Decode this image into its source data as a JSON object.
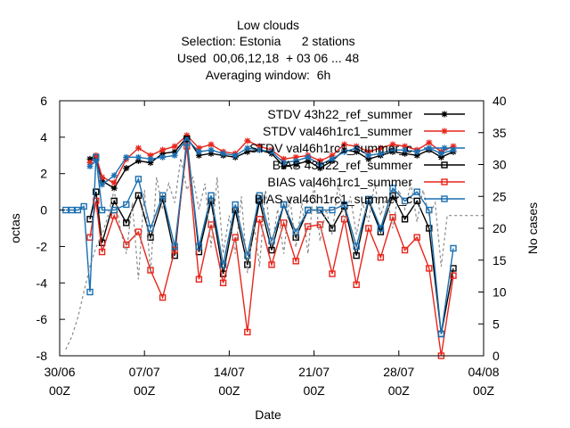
{
  "chart_data": {
    "type": "line",
    "title_lines": [
      "Low clouds",
      "Selection: Estonia      2 stations",
      "Used  00,06,12,18  + 03 06 ... 48",
      "Averaging window:  6h"
    ],
    "xlabel": "Date",
    "ylabel": "octas",
    "y2label": "No cases",
    "xlim": [
      0,
      35
    ],
    "ylim": [
      -8,
      6
    ],
    "y2lim": [
      0,
      40
    ],
    "xticks": [
      {
        "pos": 0,
        "line1": "30/06",
        "line2": "00Z"
      },
      {
        "pos": 7,
        "line1": "07/07",
        "line2": "00Z"
      },
      {
        "pos": 14,
        "line1": "14/07",
        "line2": "00Z"
      },
      {
        "pos": 21,
        "line1": "21/07",
        "line2": "00Z"
      },
      {
        "pos": 28,
        "line1": "28/07",
        "line2": "00Z"
      },
      {
        "pos": 35,
        "line1": "04/08",
        "line2": "00Z"
      }
    ],
    "yticks": [
      -8,
      -6,
      -4,
      -2,
      0,
      2,
      4,
      6
    ],
    "y2ticks": [
      0,
      5,
      10,
      15,
      20,
      25,
      30,
      35,
      40
    ],
    "grid": false,
    "legend_position": "top-right",
    "series": [
      {
        "name": "STDV 43h22_ref_summer",
        "color": "#000000",
        "marker": "star",
        "axis": "y",
        "x": [
          2.5,
          3.0,
          3.5,
          4.5,
          5.5,
          6.5,
          7.5,
          8.5,
          9.5,
          10.5,
          11.5,
          12.5,
          13.5,
          14.5,
          15.5,
          16.5,
          17.5,
          18.5,
          19.5,
          20.5,
          21.5,
          22.5,
          23.5,
          24.5,
          25.5,
          26.5,
          27.5,
          28.5,
          29.5,
          30.5,
          31.5,
          32.5
        ],
        "y": [
          2.8,
          2.9,
          1.6,
          1.2,
          2.3,
          2.7,
          2.6,
          3.1,
          3.2,
          4.0,
          3.0,
          3.1,
          3.0,
          2.9,
          3.2,
          3.3,
          3.1,
          2.4,
          2.5,
          2.7,
          2.3,
          2.7,
          3.3,
          3.2,
          2.8,
          3.0,
          3.2,
          3.1,
          3.0,
          3.3,
          2.9,
          3.2
        ]
      },
      {
        "name": "STDV val46h1rc1_summer",
        "color": "#e8251b",
        "marker": "star",
        "axis": "y",
        "x": [
          2.5,
          3.0,
          3.5,
          4.5,
          5.5,
          6.5,
          7.5,
          8.5,
          9.5,
          10.5,
          11.5,
          12.5,
          13.5,
          14.5,
          15.5,
          16.5,
          17.5,
          18.5,
          19.5,
          20.5,
          21.5,
          22.5,
          23.5,
          24.5,
          25.5,
          26.5,
          27.5,
          28.5,
          29.5,
          30.5,
          31.5,
          32.5
        ],
        "y": [
          2.6,
          3.0,
          1.8,
          1.5,
          2.8,
          3.4,
          3.0,
          3.3,
          3.5,
          4.1,
          3.4,
          3.6,
          3.2,
          3.1,
          3.8,
          3.5,
          3.3,
          2.8,
          2.9,
          3.0,
          2.7,
          3.0,
          3.6,
          3.5,
          3.2,
          3.4,
          3.6,
          3.5,
          3.3,
          3.7,
          3.2,
          3.5
        ]
      },
      {
        "name": "STDV val46h1rc1_summer_c",
        "color": "#1a6fb0",
        "marker": "star",
        "axis": "y",
        "x": [
          2.5,
          3.0,
          3.5,
          4.5,
          5.5,
          6.5,
          7.5,
          8.5,
          9.5,
          10.5,
          11.5,
          12.5,
          13.5,
          14.5,
          15.5,
          16.5,
          17.5,
          18.5,
          19.5,
          20.5,
          21.5,
          22.5,
          23.5,
          24.5,
          25.5,
          26.5,
          27.5,
          28.5,
          29.5,
          30.5,
          31.5,
          32.5
        ],
        "y": [
          2.4,
          2.7,
          1.4,
          1.9,
          2.9,
          2.9,
          2.8,
          2.9,
          3.0,
          3.9,
          3.2,
          3.3,
          3.1,
          3.0,
          3.4,
          3.3,
          3.2,
          2.6,
          2.7,
          2.9,
          2.5,
          2.8,
          3.2,
          3.4,
          3.0,
          3.1,
          3.3,
          3.3,
          3.2,
          3.4,
          3.1,
          3.3
        ]
      },
      {
        "name": "BIAS 43h22_ref_summer",
        "color": "#000000",
        "marker": "square",
        "axis": "y",
        "x": [
          2.5,
          3.0,
          3.5,
          4.5,
          5.5,
          6.5,
          7.5,
          8.5,
          9.5,
          10.5,
          11.5,
          12.5,
          13.5,
          14.5,
          15.5,
          16.5,
          17.5,
          18.5,
          19.5,
          20.5,
          21.5,
          22.5,
          23.5,
          24.5,
          25.5,
          26.5,
          27.5,
          28.5,
          29.5,
          30.5,
          31.5,
          32.5
        ],
        "y": [
          -0.5,
          1.0,
          -1.8,
          0.5,
          -0.7,
          0.8,
          -1.5,
          0.6,
          -2.5,
          3.9,
          -2.3,
          0.5,
          -3.5,
          0.0,
          -3.0,
          0.5,
          -2.2,
          0.3,
          -1.5,
          0.0,
          0.0,
          -1.0,
          0.2,
          -2.5,
          0.5,
          -1.2,
          0.8,
          -0.5,
          0.5,
          -1.0,
          -6.8,
          -3.2
        ]
      },
      {
        "name": "BIAS val46h1rc1_summer",
        "color": "#e8251b",
        "marker": "square",
        "axis": "y",
        "x": [
          2.5,
          3.0,
          3.5,
          4.5,
          5.5,
          6.5,
          7.5,
          8.5,
          9.5,
          10.5,
          11.5,
          12.5,
          13.5,
          14.5,
          15.5,
          16.5,
          17.5,
          18.5,
          19.5,
          20.5,
          21.5,
          22.5,
          23.5,
          24.5,
          25.5,
          26.5,
          27.5,
          28.5,
          29.5,
          30.5,
          31.5,
          32.5
        ],
        "y": [
          -1.5,
          0.5,
          -2.3,
          -0.3,
          -1.9,
          -1.2,
          -3.3,
          -4.8,
          -2.2,
          3.5,
          -3.8,
          -0.8,
          -4.0,
          -1.5,
          -6.7,
          -0.5,
          -3.0,
          -0.7,
          -2.8,
          -0.9,
          -0.8,
          -3.5,
          -0.5,
          -4.1,
          -1.0,
          -2.6,
          -0.4,
          -2.2,
          -1.5,
          -3.2,
          -8.0,
          -3.6
        ]
      },
      {
        "name": "BIAS val46h1rc1_summer_c",
        "color": "#1a6fb0",
        "marker": "square",
        "axis": "y",
        "x": [
          0.5,
          1.0,
          1.5,
          2.0,
          2.5,
          3.0,
          3.5,
          4.5,
          5.5,
          6.5,
          7.5,
          8.5,
          9.5,
          10.5,
          11.5,
          12.5,
          13.5,
          14.5,
          15.5,
          16.5,
          17.5,
          18.5,
          19.5,
          20.5,
          21.5,
          22.5,
          23.5,
          24.5,
          25.5,
          26.5,
          27.5,
          28.5,
          29.5,
          30.5,
          31.5,
          32.5
        ],
        "y": [
          0.0,
          0.0,
          0.0,
          0.2,
          -4.5,
          2.9,
          0.0,
          0.0,
          0.3,
          1.7,
          -1.0,
          0.8,
          -2.0,
          3.7,
          -2.0,
          0.8,
          -3.0,
          0.3,
          -2.5,
          0.8,
          -1.7,
          0.3,
          -1.2,
          0.0,
          0.0,
          0.0,
          0.3,
          -2.0,
          0.6,
          -1.0,
          1.2,
          0.5,
          1.0,
          0.0,
          -6.8,
          -2.1
        ]
      },
      {
        "name": "No cases",
        "color": "#888888",
        "marker": "none",
        "dashed": true,
        "axis": "y2",
        "x": [
          0.5,
          1.0,
          1.5,
          2.0,
          2.5,
          3.0,
          3.5,
          4.0,
          4.5,
          5.0,
          5.5,
          6.0,
          6.5,
          7.0,
          7.5,
          8.0,
          8.5,
          9.0,
          9.5,
          10.0,
          10.5,
          11.0,
          11.5,
          12.0,
          12.5,
          13.0,
          13.5,
          14.0,
          14.5,
          15.0,
          15.5,
          16.0,
          16.5,
          17.0,
          17.5,
          18.0,
          18.5,
          19.0,
          19.5,
          20.0,
          20.5,
          21.0,
          21.5,
          22.0,
          22.5,
          23.0,
          23.5,
          24.0,
          24.5,
          25.0,
          25.5,
          26.0,
          26.5,
          27.0,
          27.5,
          28.0,
          28.5,
          29.0,
          29.5,
          30.0,
          30.5,
          31.0,
          31.5,
          32.0,
          32.5,
          33.0,
          33.5,
          34.0,
          34.5,
          35.0
        ],
        "y": [
          1,
          3,
          6,
          10,
          14,
          17,
          19,
          22,
          26,
          20,
          16,
          24,
          12,
          26,
          13,
          28,
          23,
          27,
          24,
          31,
          26,
          28,
          23,
          27,
          17,
          28,
          16,
          22,
          16,
          25,
          13,
          21,
          14,
          26,
          17,
          23,
          16,
          25,
          17,
          24,
          16,
          27,
          18,
          23,
          19,
          27,
          21,
          25,
          19,
          24,
          21,
          27,
          22,
          25,
          20,
          26,
          23,
          27,
          21,
          26,
          22,
          24,
          14,
          22,
          22,
          22,
          22,
          22,
          22,
          22
        ]
      }
    ]
  }
}
